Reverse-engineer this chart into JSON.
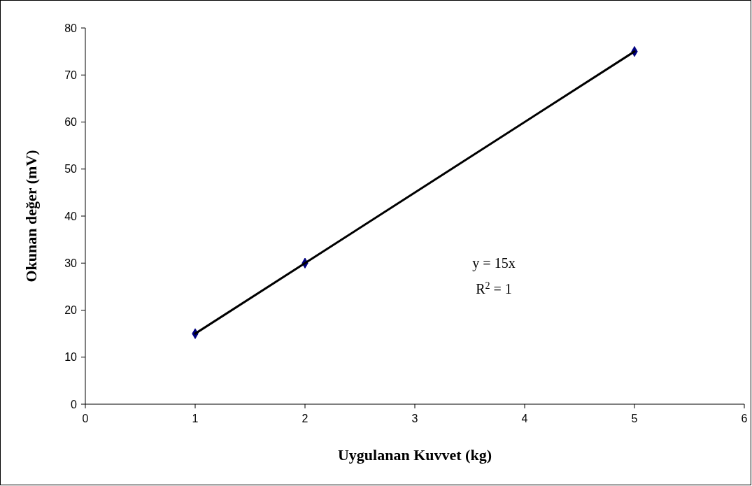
{
  "chart_data": {
    "type": "scatter",
    "xlabel": "Uygulanan Kuvvet (kg)",
    "ylabel": "Okunan değer (mV)",
    "series": [
      {
        "color": "#000080",
        "x": [
          1,
          2,
          5
        ],
        "values": [
          15,
          30,
          75
        ],
        "marker": "diamond"
      },
      {
        "type": "line",
        "color": "#000000",
        "x": [
          1,
          5
        ],
        "values": [
          15,
          75
        ],
        "marker": "none",
        "line_style": "solid"
      }
    ],
    "xlim": [
      0,
      6
    ],
    "xticks": [
      0,
      1,
      2,
      3,
      4,
      5,
      6
    ],
    "ylim": [
      0,
      80
    ],
    "yticks": [
      0,
      10,
      20,
      30,
      40,
      50,
      60,
      70,
      80
    ],
    "grid": false,
    "annotations": [
      "y = 15x",
      "R$^{2}$ = 1"
    ]
  }
}
